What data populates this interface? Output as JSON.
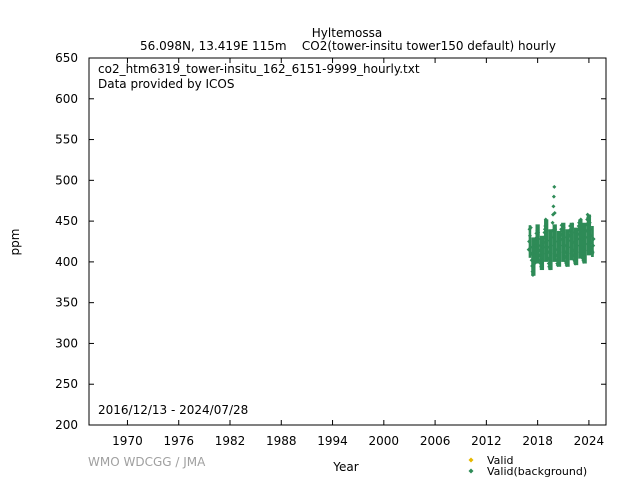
{
  "chart_data": {
    "type": "scatter",
    "title": "Hyltemossa",
    "subtitle": "56.098N, 13.419E 115m    CO2(tower-insitu tower150 default) hourly",
    "file_label": "co2_htm6319_tower-insitu_162_6151-9999_hourly.txt",
    "provider": "Data provided by ICOS",
    "date_range": "2016/12/13 - 2024/07/28",
    "xlabel": "Year",
    "ylabel": "ppm",
    "xlim": [
      1965.5,
      2026
    ],
    "ylim": [
      200,
      650
    ],
    "xticks": [
      1970,
      1976,
      1982,
      1988,
      1994,
      2000,
      2006,
      2012,
      2018,
      2024
    ],
    "yticks": [
      200,
      250,
      300,
      350,
      400,
      450,
      500,
      550,
      600,
      650
    ],
    "legend_position": "bottom-right",
    "series": [
      {
        "name": "Valid",
        "color": "#e6b800",
        "marker": "diamond",
        "points": []
      },
      {
        "name": "Valid(background)",
        "color": "#2e8b57",
        "marker": "diamond",
        "points": [
          [
            2016.95,
            415
          ],
          [
            2017.0,
            425
          ],
          [
            2017.05,
            440
          ],
          [
            2017.1,
            432
          ],
          [
            2017.15,
            418
          ],
          [
            2017.2,
            442
          ],
          [
            2017.25,
            410
          ],
          [
            2017.3,
            402
          ],
          [
            2017.35,
            395
          ],
          [
            2017.4,
            388
          ],
          [
            2017.45,
            384
          ],
          [
            2017.5,
            392
          ],
          [
            2017.55,
            400
          ],
          [
            2017.6,
            408
          ],
          [
            2017.65,
            398
          ],
          [
            2017.7,
            412
          ],
          [
            2017.75,
            420
          ],
          [
            2017.8,
            428
          ],
          [
            2017.85,
            435
          ],
          [
            2017.9,
            430
          ],
          [
            2017.95,
            438
          ],
          [
            2018.0,
            442
          ],
          [
            2018.05,
            436
          ],
          [
            2018.1,
            428
          ],
          [
            2018.15,
            420
          ],
          [
            2018.2,
            414
          ],
          [
            2018.25,
            408
          ],
          [
            2018.3,
            402
          ],
          [
            2018.35,
            398
          ],
          [
            2018.4,
            394
          ],
          [
            2018.45,
            396
          ],
          [
            2018.5,
            400
          ],
          [
            2018.55,
            402
          ],
          [
            2018.6,
            410
          ],
          [
            2018.65,
            418
          ],
          [
            2018.7,
            424
          ],
          [
            2018.75,
            430
          ],
          [
            2018.8,
            436
          ],
          [
            2018.85,
            440
          ],
          [
            2018.9,
            444
          ],
          [
            2018.95,
            452
          ],
          [
            2019.0,
            446
          ],
          [
            2019.05,
            438
          ],
          [
            2019.1,
            426
          ],
          [
            2019.15,
            418
          ],
          [
            2019.2,
            412
          ],
          [
            2019.25,
            404
          ],
          [
            2019.3,
            398
          ],
          [
            2019.35,
            394
          ],
          [
            2019.4,
            395
          ],
          [
            2019.45,
            392
          ],
          [
            2019.5,
            400
          ],
          [
            2019.55,
            410
          ],
          [
            2019.6,
            420
          ],
          [
            2019.65,
            430
          ],
          [
            2019.7,
            438
          ],
          [
            2019.75,
            448
          ],
          [
            2019.8,
            458
          ],
          [
            2019.85,
            468
          ],
          [
            2019.9,
            480
          ],
          [
            2019.95,
            492
          ],
          [
            2020.0,
            460
          ],
          [
            2020.05,
            440
          ],
          [
            2020.1,
            425
          ],
          [
            2020.15,
            415
          ],
          [
            2020.2,
            408
          ],
          [
            2020.25,
            402
          ],
          [
            2020.3,
            398
          ],
          [
            2020.35,
            396
          ],
          [
            2020.4,
            398
          ],
          [
            2020.45,
            400
          ],
          [
            2020.5,
            404
          ],
          [
            2020.55,
            412
          ],
          [
            2020.6,
            420
          ],
          [
            2020.65,
            428
          ],
          [
            2020.7,
            434
          ],
          [
            2020.75,
            440
          ],
          [
            2020.8,
            445
          ],
          [
            2020.85,
            438
          ],
          [
            2020.9,
            432
          ],
          [
            2020.95,
            426
          ],
          [
            2021.0,
            436
          ],
          [
            2021.05,
            442
          ],
          [
            2021.1,
            430
          ],
          [
            2021.15,
            420
          ],
          [
            2021.2,
            412
          ],
          [
            2021.25,
            406
          ],
          [
            2021.3,
            400
          ],
          [
            2021.35,
            398
          ],
          [
            2021.4,
            396
          ],
          [
            2021.45,
            398
          ],
          [
            2021.5,
            402
          ],
          [
            2021.55,
            410
          ],
          [
            2021.6,
            418
          ],
          [
            2021.65,
            426
          ],
          [
            2021.7,
            432
          ],
          [
            2021.75,
            438
          ],
          [
            2021.8,
            444
          ],
          [
            2021.85,
            440
          ],
          [
            2021.9,
            434
          ],
          [
            2021.95,
            430
          ],
          [
            2022.0,
            442
          ],
          [
            2022.05,
            446
          ],
          [
            2022.1,
            436
          ],
          [
            2022.15,
            424
          ],
          [
            2022.2,
            414
          ],
          [
            2022.25,
            408
          ],
          [
            2022.3,
            402
          ],
          [
            2022.35,
            400
          ],
          [
            2022.4,
            398
          ],
          [
            2022.45,
            400
          ],
          [
            2022.5,
            404
          ],
          [
            2022.55,
            412
          ],
          [
            2022.6,
            420
          ],
          [
            2022.65,
            428
          ],
          [
            2022.7,
            434
          ],
          [
            2022.75,
            440
          ],
          [
            2022.8,
            444
          ],
          [
            2022.85,
            448
          ],
          [
            2022.9,
            444
          ],
          [
            2022.95,
            438
          ],
          [
            2023.0,
            446
          ],
          [
            2023.05,
            452
          ],
          [
            2023.1,
            440
          ],
          [
            2023.15,
            428
          ],
          [
            2023.2,
            418
          ],
          [
            2023.25,
            410
          ],
          [
            2023.3,
            404
          ],
          [
            2023.35,
            402
          ],
          [
            2023.4,
            400
          ],
          [
            2023.45,
            402
          ],
          [
            2023.5,
            406
          ],
          [
            2023.55,
            414
          ],
          [
            2023.6,
            422
          ],
          [
            2023.65,
            430
          ],
          [
            2023.7,
            438
          ],
          [
            2023.75,
            446
          ],
          [
            2023.8,
            452
          ],
          [
            2023.85,
            458
          ],
          [
            2023.9,
            454
          ],
          [
            2023.95,
            448
          ],
          [
            2024.0,
            452
          ],
          [
            2024.05,
            456
          ],
          [
            2024.1,
            448
          ],
          [
            2024.15,
            440
          ],
          [
            2024.2,
            432
          ],
          [
            2024.25,
            424
          ],
          [
            2024.3,
            418
          ],
          [
            2024.35,
            414
          ],
          [
            2024.4,
            410
          ],
          [
            2024.45,
            412
          ],
          [
            2024.5,
            420
          ],
          [
            2024.55,
            428
          ]
        ],
        "bands": [
          [
            2016.95,
            2017.25,
            405,
            445
          ],
          [
            2017.25,
            2017.75,
            383,
            430
          ],
          [
            2017.75,
            2018.25,
            398,
            446
          ],
          [
            2018.25,
            2018.75,
            390,
            432
          ],
          [
            2018.75,
            2019.25,
            400,
            452
          ],
          [
            2019.25,
            2019.75,
            390,
            440
          ],
          [
            2019.75,
            2020.25,
            400,
            446
          ],
          [
            2020.25,
            2020.75,
            394,
            438
          ],
          [
            2020.75,
            2021.25,
            400,
            448
          ],
          [
            2021.25,
            2021.75,
            394,
            440
          ],
          [
            2021.75,
            2022.25,
            402,
            448
          ],
          [
            2022.25,
            2022.75,
            396,
            442
          ],
          [
            2022.75,
            2023.25,
            404,
            452
          ],
          [
            2023.25,
            2023.75,
            398,
            448
          ],
          [
            2023.75,
            2024.25,
            408,
            458
          ],
          [
            2024.25,
            2024.57,
            406,
            444
          ]
        ]
      }
    ],
    "credit": "WMO WDCGG / JMA"
  }
}
